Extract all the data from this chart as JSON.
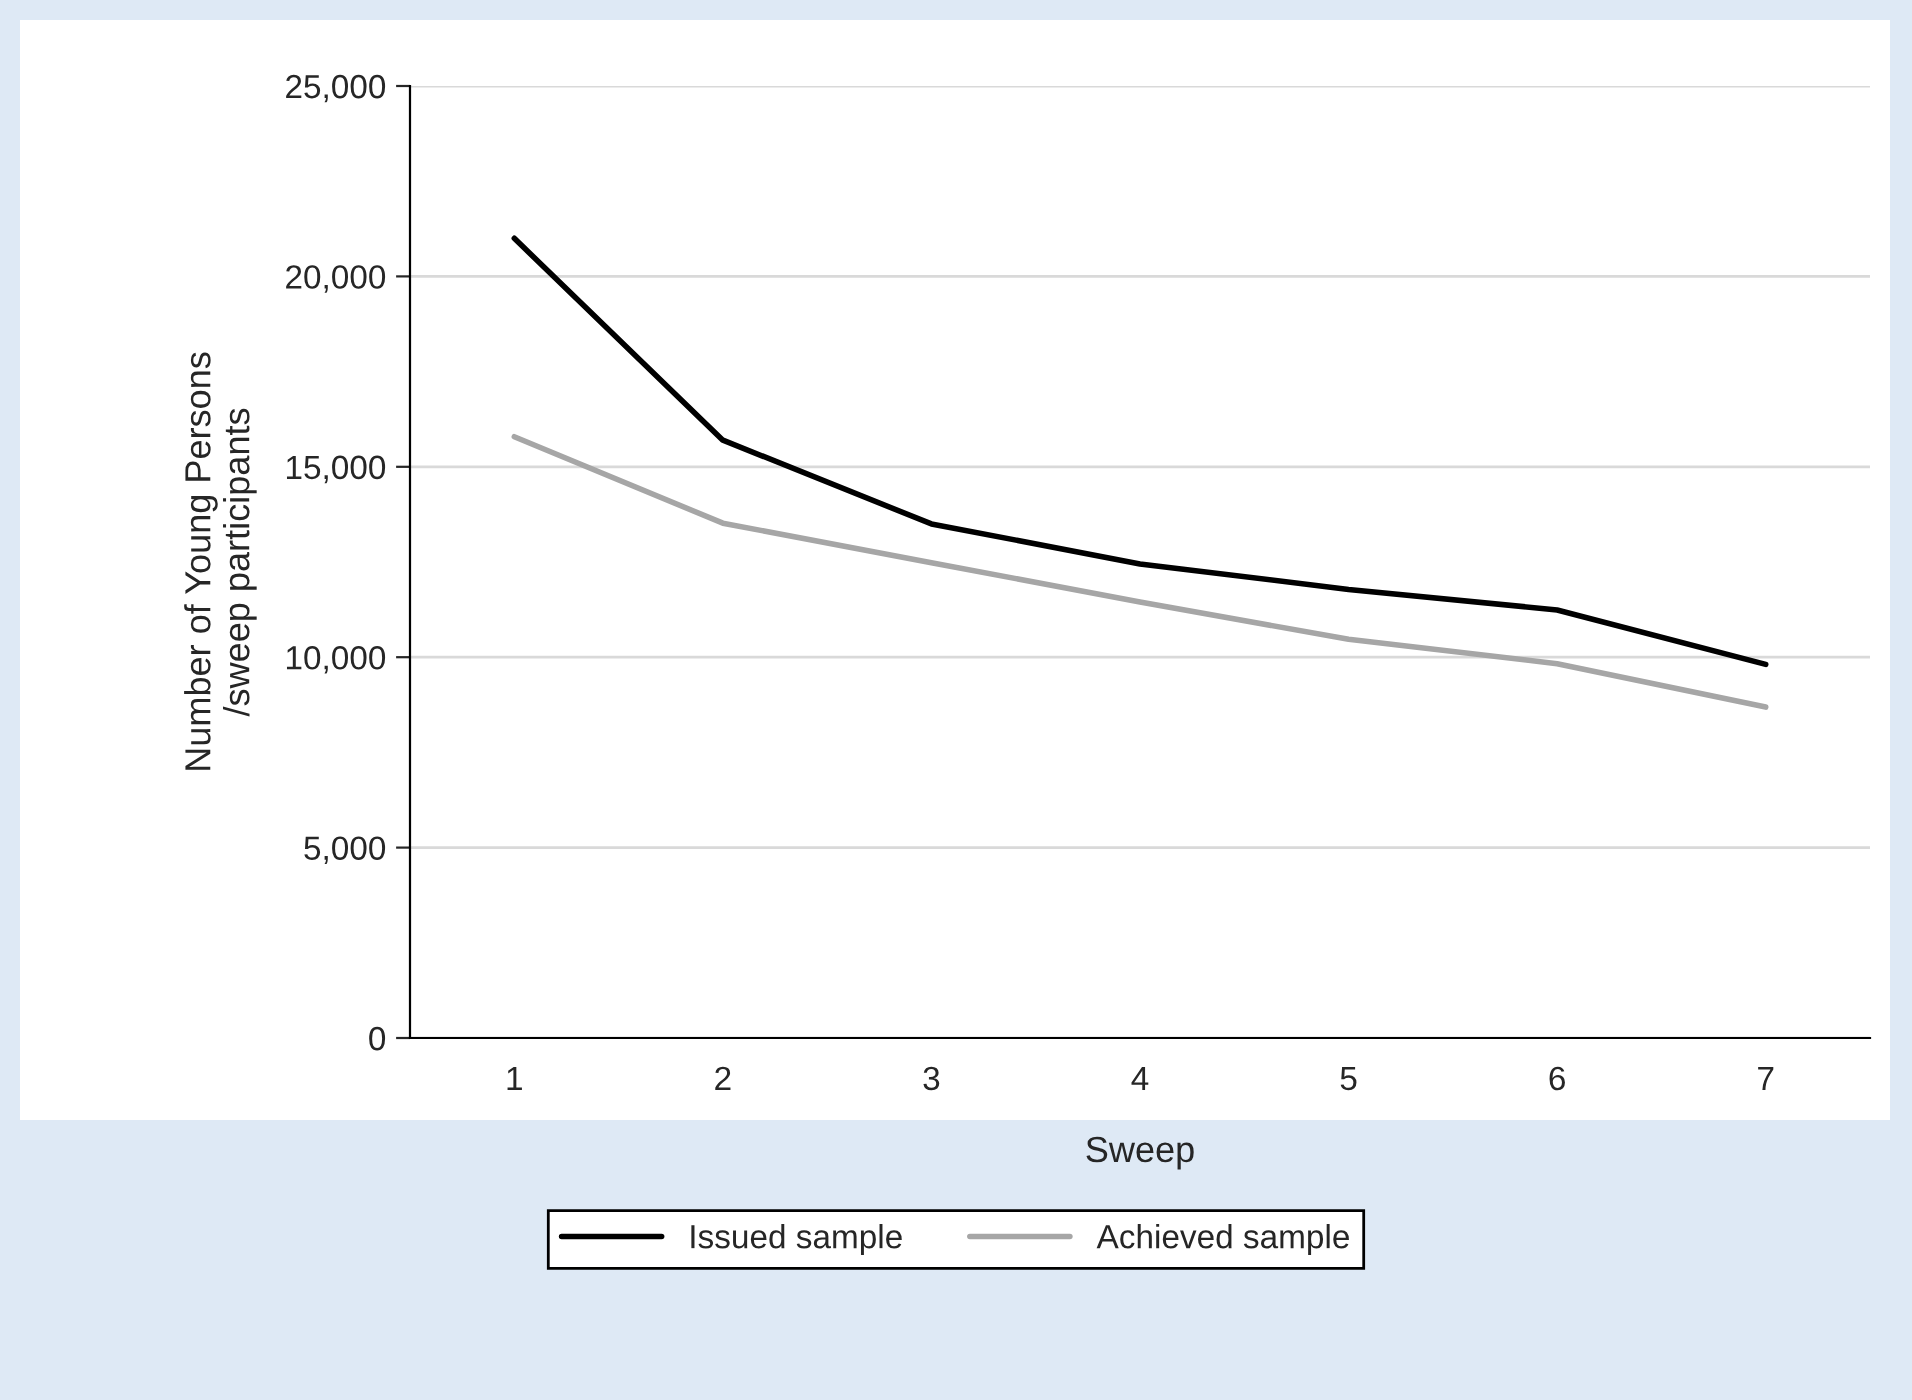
{
  "chart_data": {
    "type": "line",
    "xlabel": "Sweep",
    "ylabel": "Number of Young Persons\n/sweep participants",
    "categories": [
      "1",
      "2",
      "3",
      "4",
      "5",
      "6",
      "7"
    ],
    "series": [
      {
        "name": "Issued sample",
        "color": "#000000",
        "values": [
          21000,
          15700,
          13500,
          12450,
          11780,
          11240,
          9810
        ]
      },
      {
        "name": "Achieved sample",
        "color": "#a6a6a6",
        "values": [
          15790,
          13520,
          12480,
          11450,
          10470,
          9830,
          8690
        ]
      }
    ],
    "ylim": [
      0,
      25000
    ],
    "yticks": [
      {
        "value": 0,
        "label": "0"
      },
      {
        "value": 5000,
        "label": "5,000"
      },
      {
        "value": 10000,
        "label": "10,000"
      },
      {
        "value": 15000,
        "label": "15,000"
      },
      {
        "value": 20000,
        "label": "20,000"
      },
      {
        "value": 25000,
        "label": "25,000"
      }
    ],
    "grid": "y",
    "legend": "bottom",
    "marker": "none",
    "line_style": "solid"
  }
}
